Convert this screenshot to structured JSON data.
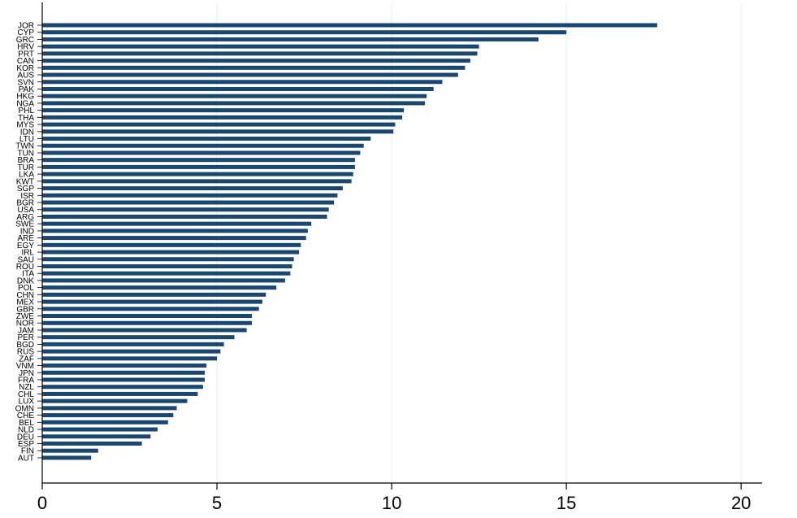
{
  "chart_data": {
    "type": "bar",
    "orientation": "horizontal",
    "categories": [
      "JOR",
      "CYP",
      "GRC",
      "HRV",
      "PRT",
      "CAN",
      "KOR",
      "AUS",
      "SVN",
      "PAK",
      "HKG",
      "NGA",
      "PHL",
      "THA",
      "MYS",
      "IDN",
      "LTU",
      "TWN",
      "TUN",
      "BRA",
      "TUR",
      "LKA",
      "KWT",
      "SGP",
      "ISR",
      "BGR",
      "USA",
      "ARG",
      "SWE",
      "IND",
      "ARE",
      "EGY",
      "IRL",
      "SAU",
      "ROU",
      "ITA",
      "DNK",
      "POL",
      "CHN",
      "MEX",
      "GBR",
      "ZWE",
      "NOR",
      "JAM",
      "PER",
      "BGD",
      "RUS",
      "ZAF",
      "VNM",
      "JPN",
      "FRA",
      "NZL",
      "CHL",
      "LUX",
      "OMN",
      "CHE",
      "BEL",
      "NLD",
      "DEU",
      "ESP",
      "FIN",
      "AUT"
    ],
    "values": [
      17.6,
      15.0,
      14.2,
      12.5,
      12.45,
      12.25,
      12.1,
      11.9,
      11.45,
      11.2,
      11.0,
      10.95,
      10.35,
      10.3,
      10.1,
      10.05,
      9.4,
      9.2,
      9.1,
      8.95,
      8.95,
      8.9,
      8.85,
      8.6,
      8.45,
      8.35,
      8.2,
      8.15,
      7.7,
      7.6,
      7.55,
      7.4,
      7.35,
      7.2,
      7.15,
      7.1,
      6.95,
      6.7,
      6.4,
      6.3,
      6.2,
      6.0,
      6.0,
      5.85,
      5.5,
      5.2,
      5.1,
      5.0,
      4.7,
      4.65,
      4.65,
      4.6,
      4.45,
      4.15,
      3.85,
      3.75,
      3.6,
      3.3,
      3.1,
      2.85,
      1.6,
      1.4
    ],
    "xlim": [
      0,
      20.6
    ],
    "xticks": [
      "0",
      "5",
      "10",
      "15",
      "20"
    ],
    "grid": true,
    "bar_color": "#1a476f",
    "grid_color": "#eaf2f3"
  }
}
